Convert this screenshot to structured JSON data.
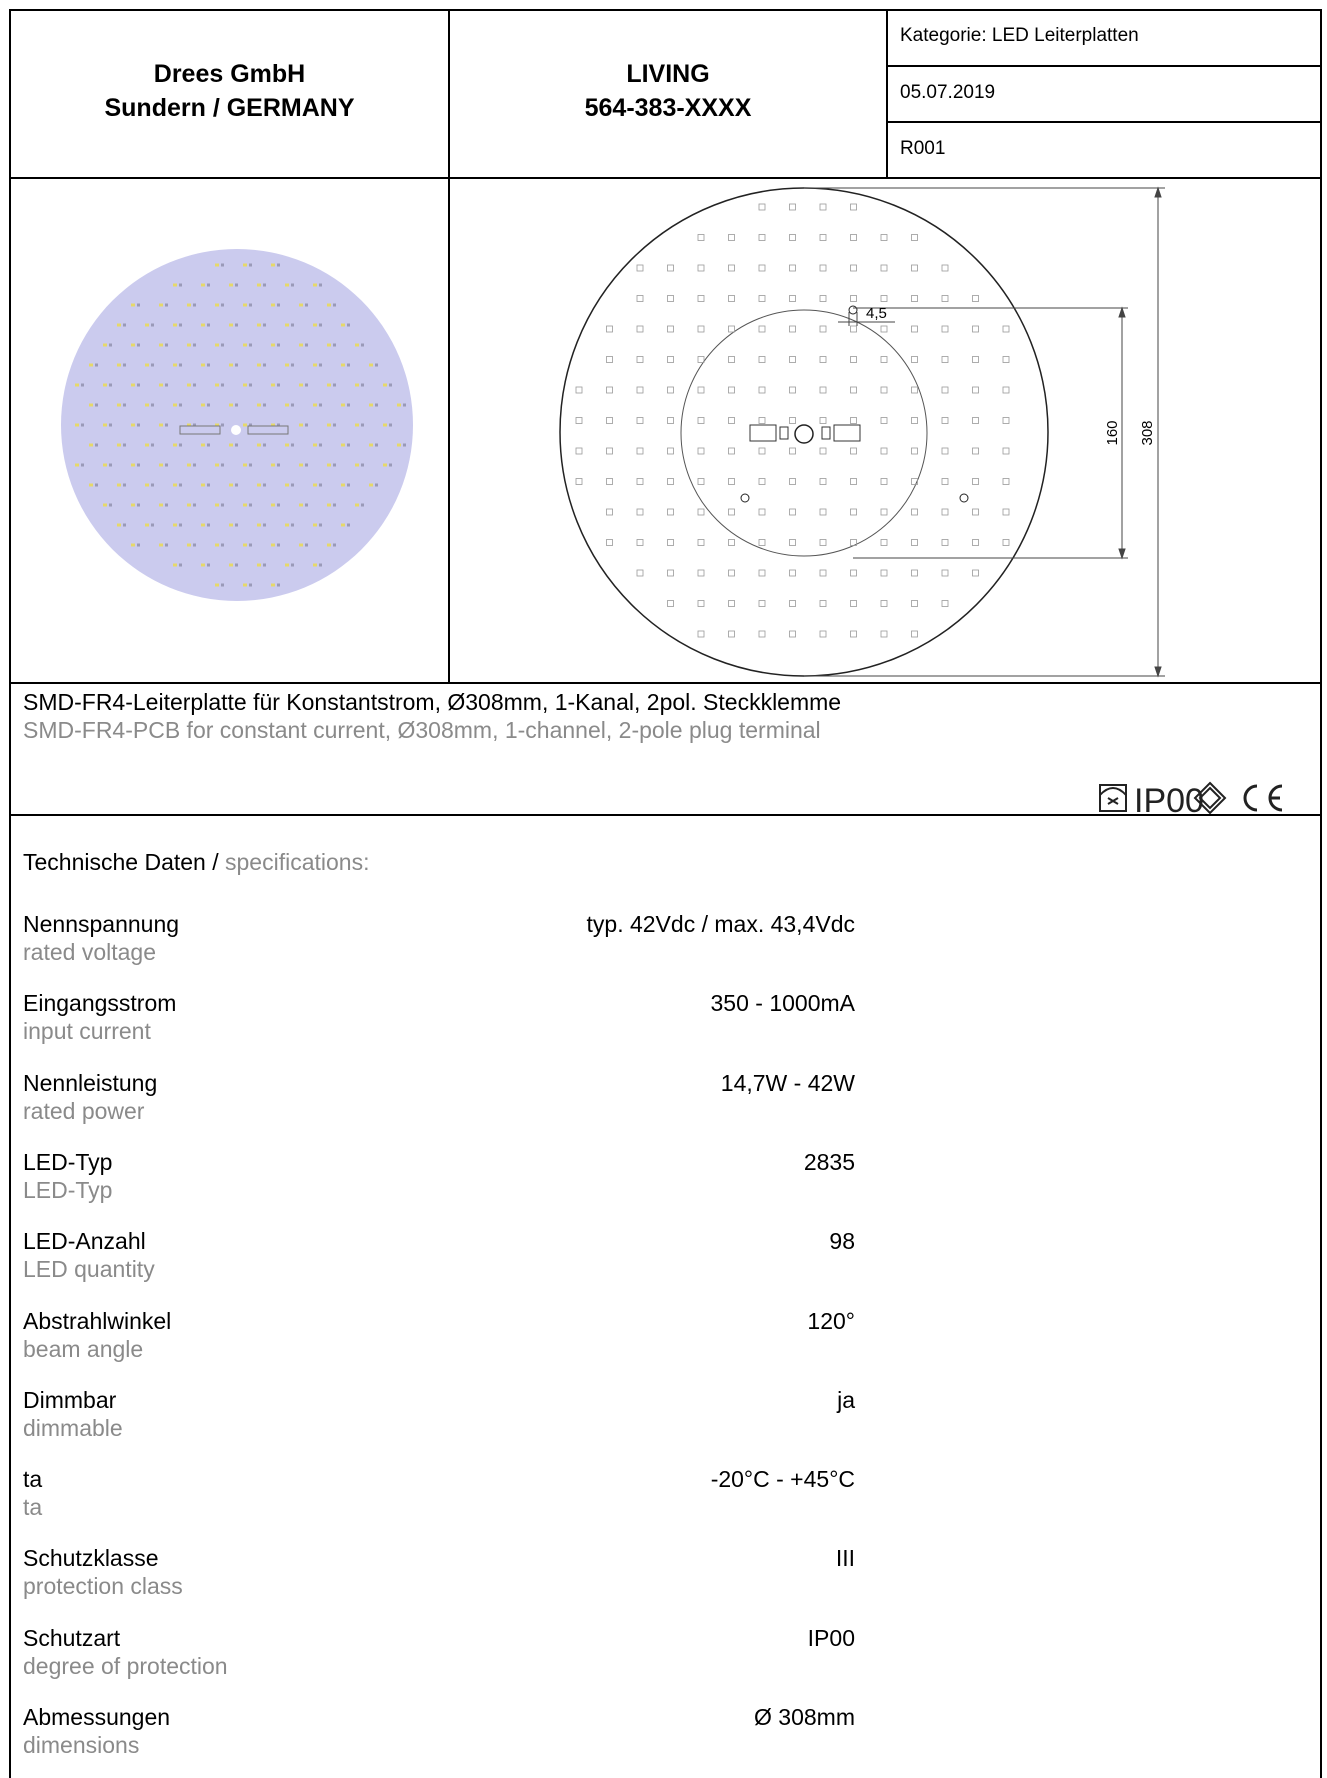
{
  "header": {
    "company": [
      "Drees GmbH",
      "Sundern / GERMANY"
    ],
    "product": [
      "LIVING",
      "564-383-XXXX"
    ],
    "category": "Kategorie: LED Leiterplatten",
    "date": "05.07.2019",
    "revision": "R001"
  },
  "drawing": {
    "hole": "4,5",
    "inner": "160",
    "outer": "308"
  },
  "description": {
    "de": "SMD-FR4-Leiterplatte für Konstantstrom, Ø308mm, 1-Kanal, 2pol. Steckklemme",
    "en": "SMD-FR4-PCB for constant current, Ø308mm, 1-channel, 2-pole plug terminal",
    "ip": "IP00"
  },
  "specs": {
    "title_de": "Technische Daten",
    "separator": " / ",
    "title_en": "specifications:",
    "rows": [
      {
        "de": "Nennspannung",
        "en": "rated voltage",
        "value": "typ. 42Vdc / max. 43,4Vdc"
      },
      {
        "de": "Eingangsstrom",
        "en": "input current",
        "value": "350 - 1000mA"
      },
      {
        "de": "Nennleistung",
        "en": "rated power",
        "value": "14,7W - 42W"
      },
      {
        "de": "LED-Typ",
        "en": "LED-Typ",
        "value": "2835"
      },
      {
        "de": "LED-Anzahl",
        "en": "LED quantity",
        "value": "98"
      },
      {
        "de": "Abstrahlwinkel",
        "en": "beam angle",
        "value": "120°"
      },
      {
        "de": "Dimmbar",
        "en": "dimmable",
        "value": "ja"
      },
      {
        "de": "ta",
        "en": "ta",
        "value": "-20°C - +45°C"
      },
      {
        "de": "Schutzklasse",
        "en": "protection class",
        "value": "III"
      },
      {
        "de": "Schutzart",
        "en": "degree of protection",
        "value": "IP00"
      },
      {
        "de": "Abmessungen",
        "en": "dimensions",
        "value": "Ø 308mm"
      }
    ]
  }
}
